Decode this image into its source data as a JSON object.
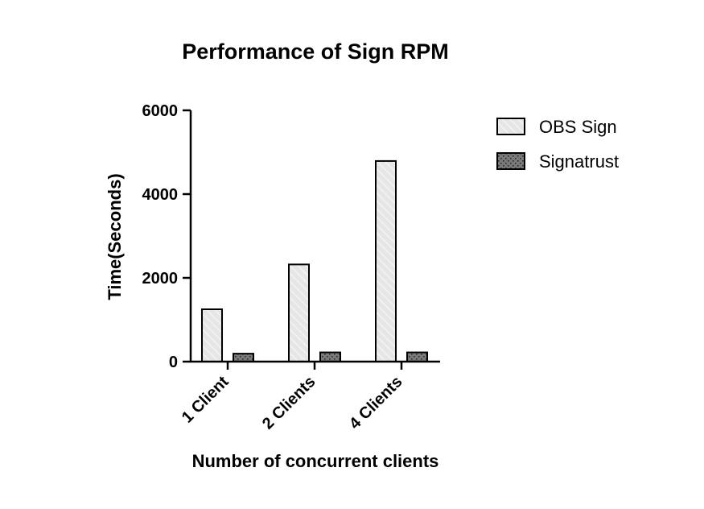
{
  "chart_data": {
    "type": "bar",
    "title": "Performance of Sign RPM",
    "xlabel": "Number of concurrent clients",
    "ylabel": "Time(Seconds)",
    "categories": [
      "1 Client",
      "2 Clients",
      "4 Clients"
    ],
    "ylim": [
      0,
      6000
    ],
    "yticks": [
      0,
      2000,
      4000,
      6000
    ],
    "grid": false,
    "legend_position": "top-right",
    "series": [
      {
        "name": "OBS Sign",
        "values": [
          1250,
          2320,
          4790
        ],
        "color": "#e6e6e6",
        "pattern": "diagonal-hatch"
      },
      {
        "name": "Signatrust",
        "values": [
          190,
          220,
          220
        ],
        "color": "#7a7a7a",
        "pattern": "dots"
      }
    ]
  }
}
